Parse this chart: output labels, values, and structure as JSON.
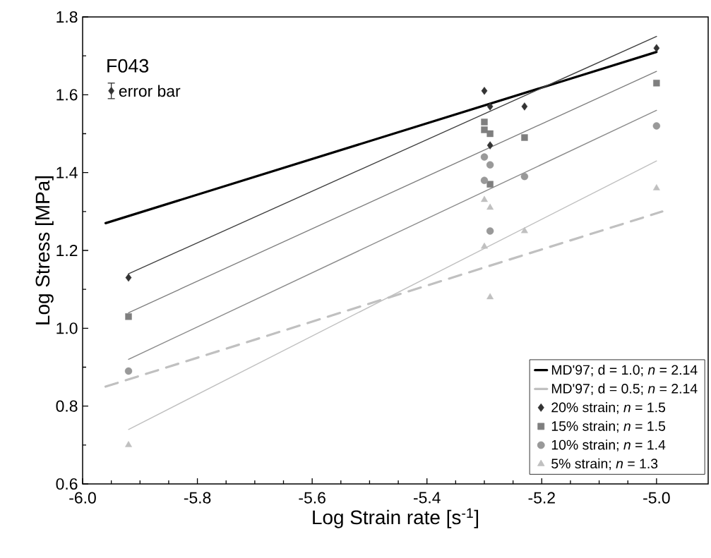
{
  "chart_data": {
    "type": "scatter",
    "xlabel": "Log Strain rate [s$^{-1}$]",
    "ylabel": "Log Stress [MPa]",
    "annotations": [
      "F043",
      {
        "text": "error bar",
        "x": -5.95,
        "y": 1.61
      }
    ],
    "xlim": [
      -6.0,
      -4.91
    ],
    "ylim": [
      0.6,
      1.8
    ],
    "xticks": [
      {
        "value": -6.0,
        "label": "-6.0"
      },
      -5.8,
      -5.6,
      -5.4,
      -5.2,
      {
        "value": -5.0,
        "label": "-5.0"
      }
    ],
    "yticks": [
      0.6,
      0.8,
      {
        "value": 1.0,
        "label": "1.0"
      },
      1.2,
      1.4,
      1.6,
      1.8
    ],
    "legend": "bottom right",
    "series": [
      {
        "name": "MD'97; d = 1.0; *n* = 2.14",
        "type": "line",
        "color": "#000000",
        "line_style": "solid",
        "marker": "none",
        "x": [
          -5.96,
          -5.0
        ],
        "values": [
          1.27,
          1.71
        ]
      },
      {
        "name": "MD'97; d = 0.5; *n* = 2.14",
        "type": "line",
        "color": "#c0c0c0",
        "line_style": "dashed",
        "marker": "none",
        "x": [
          -5.96,
          -4.99
        ],
        "values": [
          0.85,
          1.3
        ]
      },
      {
        "name": "20% strain; *n* = 1.5",
        "type": "scatter",
        "color": "#333333",
        "marker": "diamond",
        "x": [
          -5.92,
          -5.3,
          -5.29,
          -5.29,
          -5.23,
          -5.0
        ],
        "values": [
          1.13,
          1.61,
          1.57,
          1.47,
          1.57,
          1.72
        ]
      },
      {
        "name": "15% strain; *n* = 1.5",
        "type": "scatter",
        "color": "#7f7f7f",
        "marker": "square",
        "x": [
          -5.92,
          -5.3,
          -5.3,
          -5.29,
          -5.29,
          -5.23,
          -5.0
        ],
        "values": [
          1.03,
          1.53,
          1.51,
          1.5,
          1.37,
          1.49,
          1.63
        ]
      },
      {
        "name": "10% strain; *n* = 1.4",
        "type": "scatter",
        "color": "#999999",
        "marker": "circle",
        "x": [
          -5.92,
          -5.3,
          -5.29,
          -5.3,
          -5.29,
          -5.23,
          -5.0
        ],
        "values": [
          0.89,
          1.44,
          1.42,
          1.38,
          1.25,
          1.39,
          1.52
        ]
      },
      {
        "name": "5% strain; *n* = 1.3",
        "type": "scatter",
        "color": "#c0c0c0",
        "marker": "triangle",
        "x": [
          -5.92,
          -5.3,
          -5.29,
          -5.29,
          -5.3,
          -5.23,
          -5.0
        ],
        "values": [
          0.7,
          1.33,
          1.31,
          1.08,
          1.21,
          1.25,
          1.36
        ]
      },
      {
        "type": "line",
        "color": "#404040",
        "line_style": "solid",
        "marker": "none",
        "x": [
          -5.92,
          -5.0
        ],
        "values": [
          1.14,
          1.75
        ]
      },
      {
        "type": "line",
        "color": "#7f7f7f",
        "line_style": "solid",
        "marker": "none",
        "x": [
          -5.92,
          -5.0
        ],
        "values": [
          1.04,
          1.66
        ]
      },
      {
        "type": "line",
        "color": "#8c8c8c",
        "line_style": "solid",
        "marker": "none",
        "x": [
          -5.92,
          -5.0
        ],
        "values": [
          0.92,
          1.56
        ]
      },
      {
        "type": "line",
        "color": "#c0c0c0",
        "line_style": "solid",
        "marker": "none",
        "x": [
          -5.92,
          -5.0
        ],
        "values": [
          0.74,
          1.43
        ]
      },
      {
        "type": "scatter",
        "color": "#333333",
        "marker": "diamond",
        "x": [
          -5.95
        ],
        "values": [
          1.61
        ],
        "errors": [
          0.02
        ]
      }
    ]
  }
}
